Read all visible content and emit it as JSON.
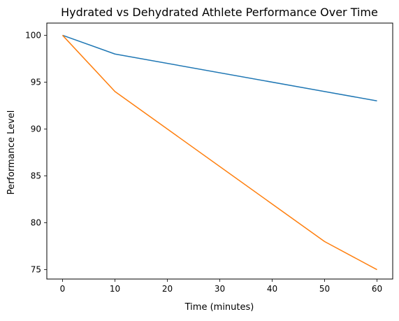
{
  "chart_data": {
    "type": "line",
    "title": "Hydrated vs Dehydrated Athlete Performance Over Time",
    "xlabel": "Time (minutes)",
    "ylabel": "Performance Level",
    "x": [
      0,
      10,
      50,
      60
    ],
    "series": [
      {
        "values": [
          100,
          98,
          94,
          93
        ],
        "color": "#1f77b4"
      },
      {
        "values": [
          100,
          94,
          78,
          75
        ],
        "color": "#ff7f0e"
      }
    ],
    "xlim": [
      -3,
      63
    ],
    "ylim": [
      74.0,
      101.3
    ],
    "xticks": [
      0,
      10,
      20,
      30,
      40,
      50,
      60
    ],
    "yticks": [
      75,
      80,
      85,
      90,
      95,
      100
    ],
    "grid": false,
    "legend": "none"
  }
}
